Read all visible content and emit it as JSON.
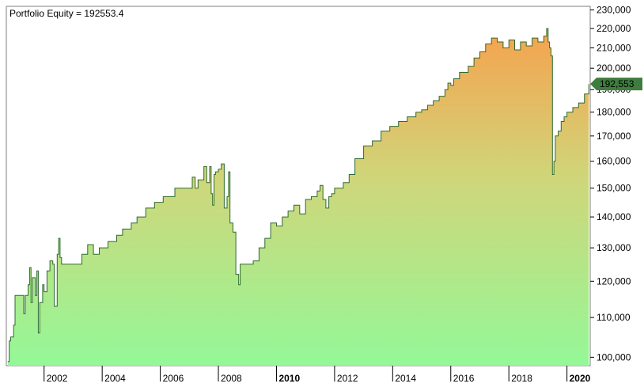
{
  "chart_data": {
    "type": "area",
    "title": "Portfolio Equity = 192553.4",
    "xlabel": "",
    "ylabel": "",
    "y_scale": "log",
    "ylim": [
      98000,
      232000
    ],
    "xlim": [
      2000.7,
      2020.8
    ],
    "grid": false,
    "legend": "none",
    "y_ticks": [
      100000,
      110000,
      120000,
      130000,
      140000,
      150000,
      160000,
      170000,
      180000,
      190000,
      200000,
      210000,
      220000,
      230000
    ],
    "y_tick_labels": [
      "100,000",
      "110,000",
      "120,000",
      "130,000",
      "140,000",
      "150,000",
      "160,000",
      "170,000",
      "180,000",
      "190,000",
      "200,000",
      "210,000",
      "220,000",
      "230,000"
    ],
    "x_ticks": [
      2002,
      2004,
      2006,
      2008,
      2010,
      2012,
      2014,
      2016,
      2018,
      2020
    ],
    "x_tick_labels": [
      "2002",
      "2004",
      "2006",
      "2008",
      "2010",
      "2012",
      "2014",
      "2016",
      "2018",
      "2020"
    ],
    "x_bold_ticks": [
      "2010",
      "2020"
    ],
    "last_value_label": "192,553",
    "series": [
      {
        "x": [
          2000.75,
          2000.8,
          2000.85,
          2000.95,
          2001.0,
          2001.1,
          2001.3,
          2001.35,
          2001.45,
          2001.5,
          2001.55,
          2001.6,
          2001.7,
          2001.75,
          2001.8,
          2001.85,
          2001.95,
          2002.0,
          2002.1,
          2002.2,
          2002.3,
          2002.35,
          2002.45,
          2002.5,
          2002.55,
          2002.6,
          2002.9,
          2003.0,
          2003.3,
          2003.5,
          2003.7,
          2003.9,
          2004.2,
          2004.5,
          2004.7,
          2005.0,
          2005.2,
          2005.5,
          2005.8,
          2006.1,
          2006.5,
          2006.8,
          2007.0,
          2007.1,
          2007.2,
          2007.3,
          2007.5,
          2007.6,
          2007.7,
          2007.75,
          2007.8,
          2007.85,
          2007.9,
          2008.0,
          2008.1,
          2008.2,
          2008.3,
          2008.35,
          2008.4,
          2008.5,
          2008.6,
          2008.7,
          2008.75,
          2008.8,
          2008.85,
          2009.0,
          2009.2,
          2009.4,
          2009.6,
          2009.8,
          2010.0,
          2010.2,
          2010.4,
          2010.6,
          2010.8,
          2011.0,
          2011.2,
          2011.4,
          2011.5,
          2011.6,
          2011.7,
          2011.8,
          2011.9,
          2012.0,
          2012.3,
          2012.5,
          2012.7,
          2013.0,
          2013.3,
          2013.6,
          2013.9,
          2014.2,
          2014.5,
          2014.8,
          2015.0,
          2015.2,
          2015.4,
          2015.6,
          2015.8,
          2015.9,
          2016.0,
          2016.1,
          2016.3,
          2016.6,
          2016.8,
          2017.0,
          2017.2,
          2017.4,
          2017.6,
          2017.8,
          2018.0,
          2018.2,
          2018.4,
          2018.6,
          2018.8,
          2019.0,
          2019.2,
          2019.3,
          2019.35,
          2019.4,
          2019.45,
          2019.5,
          2019.55,
          2019.6,
          2019.7,
          2019.8,
          2019.9,
          2020.0,
          2020.2,
          2020.4,
          2020.6,
          2020.75
        ],
        "values": [
          99000,
          104000,
          105000,
          108000,
          116000,
          116000,
          111000,
          116000,
          119000,
          124000,
          114000,
          121000,
          116000,
          123000,
          106000,
          114000,
          119000,
          117000,
          123000,
          126000,
          125000,
          113000,
          128000,
          133000,
          127000,
          125000,
          125000,
          125000,
          128000,
          131000,
          128000,
          130000,
          132000,
          134000,
          136000,
          138000,
          140000,
          143000,
          145000,
          147000,
          150000,
          150000,
          150000,
          154000,
          150000,
          153000,
          158000,
          152000,
          158000,
          148000,
          144000,
          155000,
          156000,
          157000,
          159000,
          143000,
          147000,
          156000,
          138000,
          135000,
          122000,
          119000,
          125000,
          125000,
          125000,
          125000,
          126000,
          130000,
          133000,
          138000,
          137000,
          140000,
          142000,
          144000,
          141000,
          146000,
          147000,
          149000,
          151000,
          146000,
          143000,
          147000,
          148000,
          150000,
          152000,
          155000,
          161000,
          166000,
          168000,
          172000,
          174000,
          176000,
          178000,
          180000,
          181000,
          183000,
          185000,
          187000,
          190000,
          193000,
          192000,
          195000,
          198000,
          201000,
          205000,
          208000,
          212000,
          215000,
          213000,
          210000,
          214000,
          209000,
          213000,
          211000,
          215000,
          213000,
          216000,
          220000,
          213000,
          210000,
          206000,
          155000,
          160000,
          170000,
          172000,
          176000,
          178000,
          180000,
          182000,
          184000,
          188000,
          192553
        ]
      }
    ]
  }
}
